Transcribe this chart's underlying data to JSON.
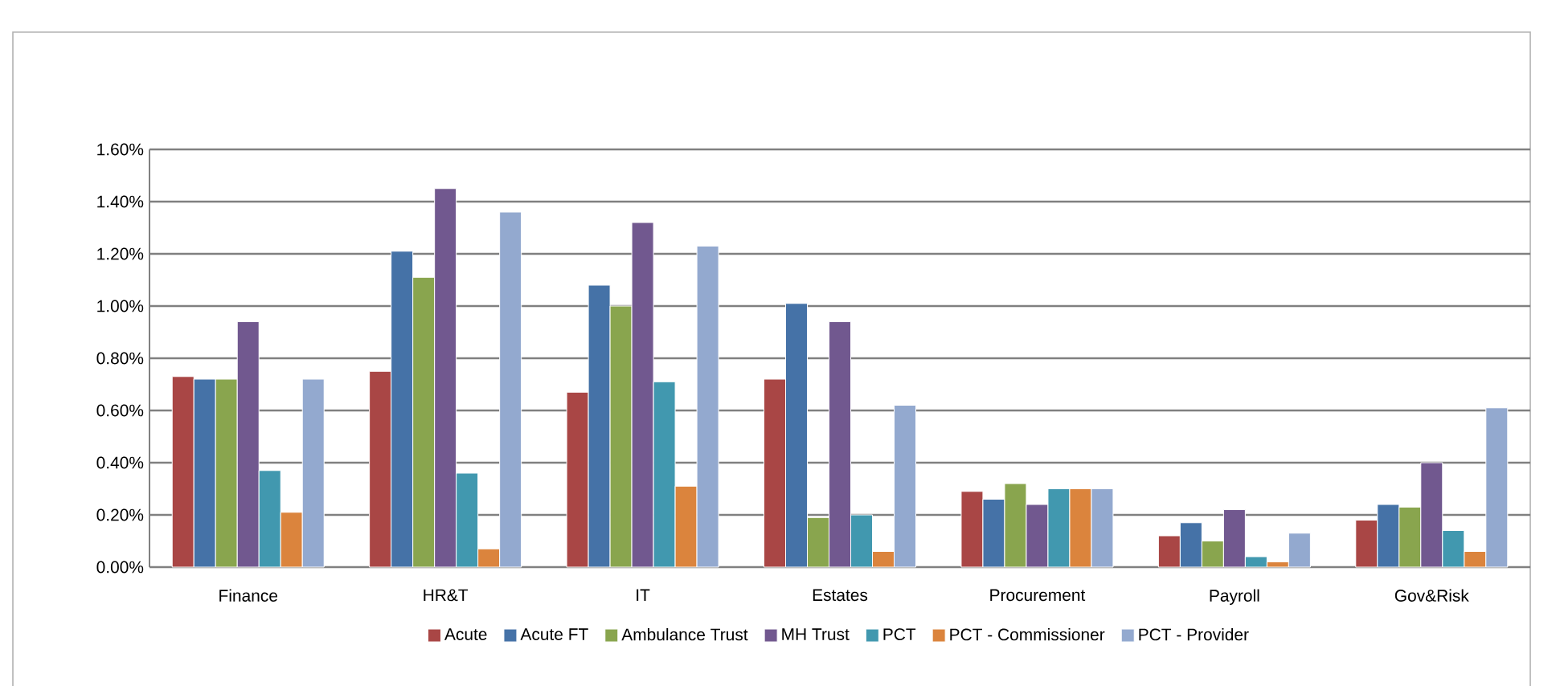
{
  "chart_data": {
    "type": "bar",
    "categories": [
      "Finance",
      "HR&T",
      "IT",
      "Estates",
      "Procurement",
      "Payroll",
      "Gov&Risk"
    ],
    "series": [
      {
        "name": "Acute",
        "color": "#a94645",
        "values": [
          0.73,
          0.75,
          0.67,
          0.72,
          0.29,
          0.12,
          0.18
        ]
      },
      {
        "name": "Acute FT",
        "color": "#4572a7",
        "values": [
          0.72,
          1.21,
          1.08,
          1.01,
          0.26,
          0.17,
          0.24
        ]
      },
      {
        "name": "Ambulance Trust",
        "color": "#89a54e",
        "values": [
          0.72,
          1.11,
          1.0,
          0.19,
          0.32,
          0.1,
          0.23
        ]
      },
      {
        "name": "MH Trust",
        "color": "#71588f",
        "values": [
          0.94,
          1.45,
          1.32,
          0.94,
          0.24,
          0.22,
          0.4
        ]
      },
      {
        "name": "PCT",
        "color": "#4198af",
        "values": [
          0.37,
          0.36,
          0.71,
          0.2,
          0.3,
          0.04,
          0.14
        ]
      },
      {
        "name": "PCT - Commissioner",
        "color": "#db843d",
        "values": [
          0.21,
          0.07,
          0.31,
          0.06,
          0.3,
          0.02,
          0.06
        ]
      },
      {
        "name": "PCT - Provider",
        "color": "#93a9cf",
        "values": [
          0.72,
          1.36,
          1.23,
          0.62,
          0.3,
          0.13,
          0.61
        ]
      }
    ],
    "ylim": [
      0,
      1.6
    ],
    "yticks": [
      {
        "value": 0,
        "label": "0.00%"
      },
      {
        "value": 0.2,
        "label": "0.20%"
      },
      {
        "value": 0.4,
        "label": "0.40%"
      },
      {
        "value": 0.6,
        "label": "0.60%"
      },
      {
        "value": 0.8,
        "label": "0.80%"
      },
      {
        "value": 1.0,
        "label": "1.00%"
      },
      {
        "value": 1.2,
        "label": "1.20%"
      },
      {
        "value": 1.4,
        "label": "1.40%"
      },
      {
        "value": 1.6,
        "label": "1.60%"
      }
    ],
    "grid": "y",
    "legend": "bottom"
  }
}
